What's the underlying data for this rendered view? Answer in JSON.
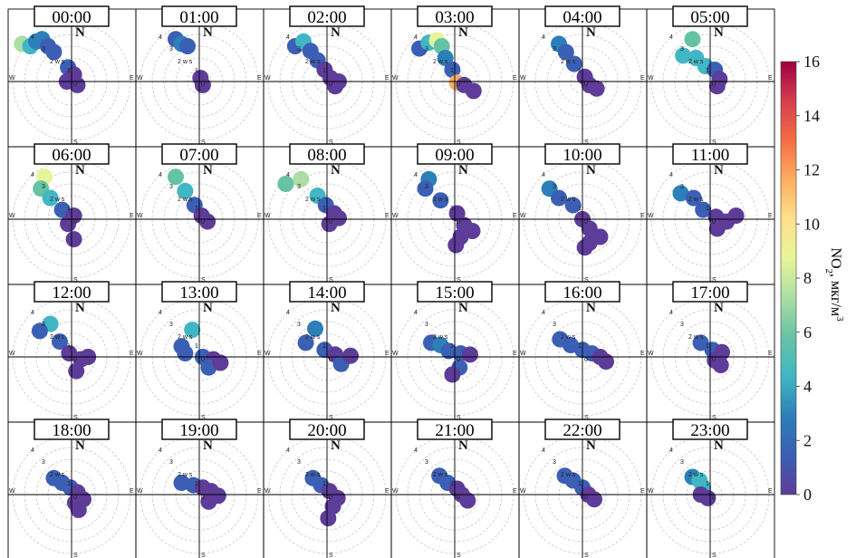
{
  "chart_data": {
    "type": "polar-plot-grid",
    "panels": [
      "00:00",
      "01:00",
      "02:00",
      "03:00",
      "04:00",
      "05:00",
      "06:00",
      "07:00",
      "08:00",
      "09:00",
      "10:00",
      "11:00",
      "12:00",
      "13:00",
      "14:00",
      "15:00",
      "16:00",
      "17:00",
      "18:00",
      "19:00",
      "20:00",
      "21:00",
      "22:00",
      "23:00"
    ],
    "compass": {
      "north": "N",
      "south": "S",
      "east": "E",
      "west": "W"
    },
    "radial_ticks": [
      "1",
      "2 w s",
      "3",
      "4"
    ],
    "radial_zero": "0",
    "colorbar": {
      "label_main": "NO",
      "label_sub": "2",
      "label_unit": ", мкг/м",
      "label_sup": "3",
      "ticks": [
        0,
        2,
        4,
        6,
        8,
        10,
        12,
        14,
        16
      ],
      "range": [
        0,
        16
      ],
      "colors": [
        "#5e3c99",
        "#3b5fb5",
        "#2c7fb8",
        "#41b6c4",
        "#66c2a5",
        "#abdda4",
        "#e6f598",
        "#fee08b",
        "#fdae61",
        "#f46d43",
        "#d53e4f",
        "#9e0142"
      ]
    },
    "blobs": [
      [
        [
          -4.2,
          3.2,
          7
        ],
        [
          -3.5,
          3.0,
          5
        ],
        [
          -3.0,
          3.4,
          3
        ],
        [
          -2.5,
          3.6,
          3
        ],
        [
          -2.0,
          3.0,
          2
        ],
        [
          -1.5,
          2.5,
          1
        ],
        [
          -0.3,
          1.2,
          1
        ],
        [
          0.2,
          0.6,
          0
        ],
        [
          -0.4,
          0.0,
          0
        ],
        [
          0.5,
          -0.3,
          0
        ]
      ],
      [
        [
          -2.0,
          3.6,
          2
        ],
        [
          -1.5,
          3.2,
          3
        ],
        [
          -1.0,
          3.0,
          1
        ],
        [
          0.1,
          0.3,
          0
        ],
        [
          0.3,
          -0.3,
          0
        ]
      ],
      [
        [
          -2.7,
          3.0,
          2
        ],
        [
          -2.0,
          3.4,
          4
        ],
        [
          -1.4,
          2.6,
          1
        ],
        [
          -0.8,
          1.8,
          1
        ],
        [
          -0.2,
          1.0,
          0
        ],
        [
          0.3,
          0.3,
          0
        ],
        [
          1.0,
          0.0,
          0
        ],
        [
          0.7,
          -0.4,
          0
        ]
      ],
      [
        [
          -3.0,
          2.8,
          2
        ],
        [
          -2.2,
          3.3,
          4
        ],
        [
          -1.5,
          3.5,
          9
        ],
        [
          -1.1,
          3.0,
          6
        ],
        [
          -0.8,
          2.0,
          3
        ],
        [
          -0.2,
          1.0,
          2
        ],
        [
          0.2,
          -0.1,
          11
        ],
        [
          0.8,
          -0.3,
          0
        ],
        [
          1.6,
          -0.8,
          0
        ]
      ],
      [
        [
          -2.0,
          3.2,
          3
        ],
        [
          -1.4,
          2.5,
          2
        ],
        [
          -0.7,
          1.5,
          1
        ],
        [
          0.2,
          0.4,
          0
        ],
        [
          0.6,
          -0.3,
          0
        ],
        [
          1.2,
          -0.6,
          0
        ]
      ],
      [
        [
          -1.5,
          3.6,
          6
        ],
        [
          -2.3,
          2.2,
          4
        ],
        [
          -1.2,
          2.0,
          5
        ],
        [
          -0.4,
          1.3,
          4
        ],
        [
          0.4,
          1.0,
          1
        ],
        [
          0.8,
          0.2,
          0
        ],
        [
          0.6,
          -0.4,
          0
        ]
      ],
      [
        [
          -2.3,
          3.6,
          9
        ],
        [
          -2.6,
          2.6,
          6
        ],
        [
          -1.8,
          1.8,
          4
        ],
        [
          -0.8,
          0.8,
          1
        ],
        [
          0.2,
          0.3,
          0
        ],
        [
          -0.3,
          -0.4,
          0
        ],
        [
          0.2,
          -1.7,
          0
        ]
      ],
      [
        [
          -2.0,
          3.6,
          6
        ],
        [
          -1.2,
          2.4,
          4
        ],
        [
          -0.4,
          1.2,
          1
        ],
        [
          0.2,
          0.3,
          0
        ],
        [
          0.7,
          -0.2,
          0
        ]
      ],
      [
        [
          -3.5,
          3.0,
          6
        ],
        [
          -2.2,
          3.4,
          7
        ],
        [
          -0.8,
          2.0,
          5
        ],
        [
          -0.1,
          1.2,
          1
        ],
        [
          0.6,
          0.5,
          0
        ],
        [
          1.0,
          0.1,
          0
        ],
        [
          0.2,
          -0.4,
          0
        ]
      ],
      [
        [
          -2.2,
          3.4,
          3
        ],
        [
          -2.5,
          2.6,
          2
        ],
        [
          -1.2,
          1.6,
          2
        ],
        [
          0.2,
          0.5,
          0
        ],
        [
          0.8,
          -0.5,
          0
        ],
        [
          1.5,
          -1.0,
          0
        ],
        [
          0.5,
          -1.5,
          0
        ],
        [
          0.1,
          -2.2,
          0
        ]
      ],
      [
        [
          -2.8,
          2.6,
          3
        ],
        [
          -2.0,
          1.8,
          2
        ],
        [
          -0.8,
          1.2,
          1
        ],
        [
          0.0,
          0.0,
          0
        ],
        [
          0.6,
          -0.8,
          0
        ],
        [
          1.5,
          -1.5,
          0
        ],
        [
          0.6,
          -2.0,
          0
        ],
        [
          0.2,
          -2.4,
          0
        ]
      ],
      [
        [
          -2.5,
          2.2,
          3
        ],
        [
          -1.4,
          1.8,
          2
        ],
        [
          -0.6,
          0.8,
          1
        ],
        [
          0.5,
          0.2,
          0
        ],
        [
          1.4,
          -0.2,
          0
        ],
        [
          2.2,
          0.3,
          0
        ],
        [
          0.6,
          -0.8,
          0
        ]
      ],
      [
        [
          -1.8,
          2.8,
          4
        ],
        [
          -2.7,
          2.2,
          2
        ],
        [
          -1.0,
          1.3,
          1
        ],
        [
          -0.2,
          0.3,
          0
        ],
        [
          0.8,
          -0.2,
          0
        ],
        [
          1.4,
          0.0,
          0
        ],
        [
          0.4,
          -1.2,
          0
        ]
      ],
      [
        [
          -0.6,
          2.3,
          4
        ],
        [
          -1.5,
          0.9,
          2
        ],
        [
          -1.2,
          0.3,
          1
        ],
        [
          0.3,
          0.0,
          1
        ],
        [
          1.2,
          -0.2,
          0
        ],
        [
          0.8,
          -0.9,
          2
        ],
        [
          1.8,
          -0.5,
          0
        ]
      ],
      [
        [
          -1.0,
          2.4,
          3
        ],
        [
          -1.8,
          1.2,
          1
        ],
        [
          -0.2,
          0.6,
          1
        ],
        [
          0.7,
          0.2,
          0
        ],
        [
          1.2,
          -0.6,
          2
        ],
        [
          2.0,
          0.1,
          0
        ]
      ],
      [
        [
          -2.0,
          1.2,
          2
        ],
        [
          -1.2,
          1.0,
          3
        ],
        [
          -0.5,
          0.5,
          2
        ],
        [
          0.5,
          0.3,
          1
        ],
        [
          1.3,
          0.2,
          0
        ],
        [
          0.4,
          -0.9,
          1
        ],
        [
          -0.2,
          -1.5,
          0
        ]
      ],
      [
        [
          -1.9,
          1.5,
          2
        ],
        [
          -1.0,
          1.0,
          2
        ],
        [
          0.0,
          0.6,
          1
        ],
        [
          0.8,
          0.3,
          1
        ],
        [
          1.5,
          0.0,
          0
        ],
        [
          2.0,
          -0.4,
          0
        ]
      ],
      [
        [
          -0.8,
          1.2,
          1
        ],
        [
          0.2,
          0.6,
          1
        ],
        [
          1.0,
          0.4,
          0
        ],
        [
          0.4,
          -0.3,
          0
        ],
        [
          0.9,
          -0.7,
          0
        ]
      ],
      [
        [
          -1.5,
          1.4,
          1
        ],
        [
          -0.8,
          1.0,
          1
        ],
        [
          -0.1,
          0.6,
          1
        ],
        [
          0.5,
          0.2,
          0
        ],
        [
          0.3,
          -0.7,
          0
        ],
        [
          1.0,
          -0.4,
          0
        ],
        [
          0.6,
          -1.3,
          0
        ]
      ],
      [
        [
          -1.5,
          1.0,
          1
        ],
        [
          -0.5,
          0.8,
          1
        ],
        [
          0.3,
          0.6,
          0
        ],
        [
          1.0,
          0.3,
          0
        ],
        [
          1.6,
          -0.1,
          0
        ],
        [
          0.8,
          -0.6,
          0
        ]
      ],
      [
        [
          -1.2,
          1.4,
          1
        ],
        [
          -0.5,
          0.8,
          1
        ],
        [
          0.2,
          0.3,
          0
        ],
        [
          0.9,
          -0.3,
          0
        ],
        [
          0.5,
          -1.0,
          0
        ],
        [
          0.1,
          -2.0,
          0
        ]
      ],
      [
        [
          -1.3,
          1.6,
          1
        ],
        [
          -0.6,
          1.0,
          1
        ],
        [
          0.2,
          0.5,
          0
        ],
        [
          0.6,
          0.0,
          0
        ],
        [
          1.1,
          -0.5,
          0
        ]
      ],
      [
        [
          -1.5,
          1.6,
          1
        ],
        [
          -0.8,
          1.2,
          1
        ],
        [
          0.0,
          0.6,
          1
        ],
        [
          0.5,
          0.0,
          0
        ],
        [
          1.0,
          -0.4,
          0
        ]
      ],
      [
        [
          -1.5,
          1.5,
          3
        ],
        [
          -0.9,
          1.2,
          4
        ],
        [
          -0.6,
          0.6,
          4
        ],
        [
          -0.8,
          0.0,
          0
        ],
        [
          -0.2,
          -0.3,
          0
        ]
      ]
    ]
  }
}
